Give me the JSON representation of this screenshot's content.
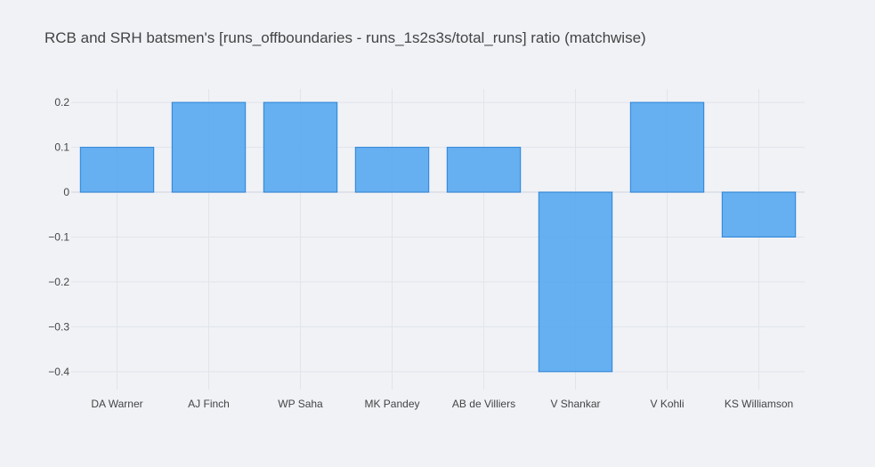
{
  "chart_data": {
    "type": "bar",
    "title": "RCB and SRH batsmen's [runs_offboundaries - runs_1s2s3s/total_runs] ratio (matchwise)",
    "xlabel": "",
    "ylabel": "",
    "categories": [
      "DA Warner",
      "AJ Finch",
      "WP Saha",
      "MK Pandey",
      "AB de Villiers",
      "V Shankar",
      "V Kohli",
      "KS Williamson"
    ],
    "values": [
      0.1,
      0.2,
      0.2,
      0.1,
      0.1,
      -0.4,
      0.2,
      -0.1
    ],
    "ylim": [
      -0.44,
      0.23
    ],
    "yticks": [
      0.2,
      0.1,
      0,
      -0.1,
      -0.2,
      -0.3,
      -0.4
    ],
    "ytick_labels": [
      "0.2",
      "0.1",
      "0",
      "−0.1",
      "−0.2",
      "−0.3",
      "−0.4"
    ],
    "grid": true,
    "legend": "none",
    "colors": {
      "bar_fill": "#4da3ef",
      "bar_stroke": "#2b84d8",
      "grid": "#e1e4ea",
      "zeroline": "#dfe2e8",
      "tick_text": "#444444",
      "background": "#f0f2f6"
    }
  }
}
